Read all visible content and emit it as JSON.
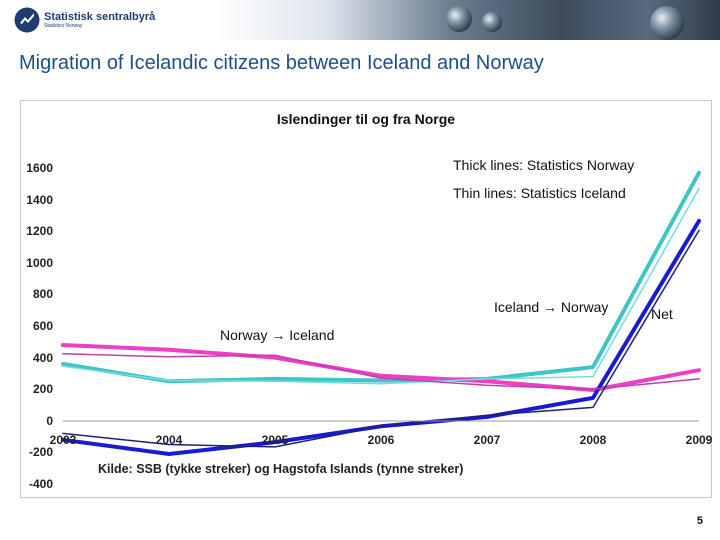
{
  "banner": {
    "org_name": "Statistisk sentralbyrå",
    "org_subtitle": "Statistics Norway"
  },
  "slide": {
    "title": "Migration of Icelandic citizens between Iceland and Norway",
    "page_number": "5"
  },
  "chart_data": {
    "type": "line",
    "title": "Islendinger til og fra Norge",
    "x": [
      2003,
      2004,
      2005,
      2006,
      2007,
      2008,
      2009
    ],
    "x_tick_labels": [
      "2003",
      "2004",
      "2005",
      "2006",
      "2007",
      "2008",
      "2009"
    ],
    "ylim": [
      -400,
      1600
    ],
    "y_ticks": [
      1600,
      1400,
      1200,
      1000,
      800,
      600,
      400,
      200,
      0,
      -200,
      -400
    ],
    "grid": false,
    "legend": "none",
    "annotations": {
      "thick_lines": "Thick lines: Statistics Norway",
      "thin_lines": "Thin lines: Statistics Iceland",
      "iceland_to_norway": "Iceland → Norway",
      "norway_to_iceland": "Norway → Iceland",
      "net": "Net"
    },
    "source": "Kilde: SSB (tykke streker) og Hagstofa Islands (tynne streker)",
    "series": [
      {
        "color": "#40c4c8",
        "style": "thick",
        "values": [
          360,
          250,
          265,
          255,
          265,
          340,
          1570
        ]
      },
      {
        "color": "#70dede",
        "style": "thin",
        "values": [
          345,
          255,
          250,
          235,
          265,
          280,
          1470
        ]
      },
      {
        "color": "#ee3ec8",
        "style": "thick",
        "values": [
          480,
          450,
          400,
          285,
          250,
          195,
          320
        ]
      },
      {
        "color": "#c040a8",
        "style": "thin",
        "values": [
          425,
          405,
          415,
          270,
          225,
          200,
          265
        ]
      },
      {
        "color": "#1a1ad0",
        "style": "thick",
        "values": [
          -120,
          -210,
          -135,
          -35,
          25,
          145,
          1265
        ]
      },
      {
        "color": "#20207a",
        "style": "thin",
        "values": [
          -80,
          -150,
          -165,
          -35,
          35,
          85,
          1205
        ]
      }
    ]
  }
}
